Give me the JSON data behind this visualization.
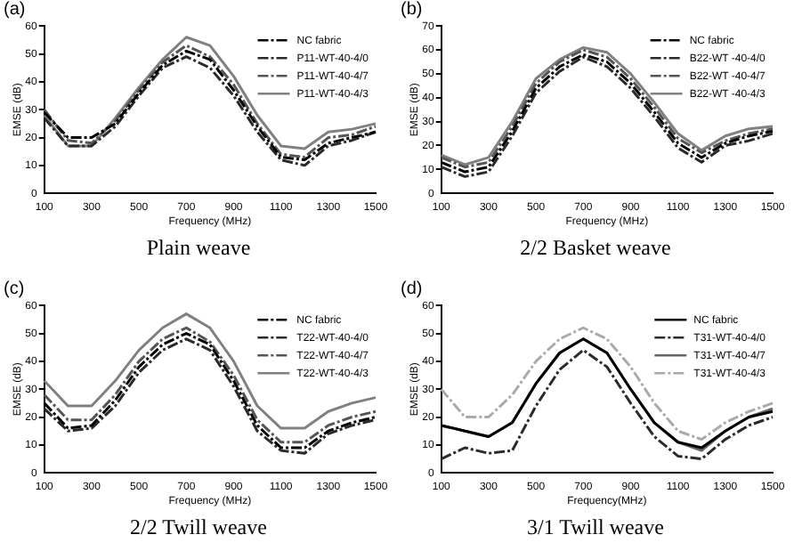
{
  "chart_data": [
    {
      "type": "line",
      "title": "(a)",
      "annotations": [
        "Plain weave"
      ],
      "xlabel": "Frequency (MHz)",
      "ylabel": "EMSE (dB)",
      "x": [
        100,
        200,
        300,
        400,
        500,
        600,
        700,
        800,
        900,
        1000,
        1100,
        1200,
        1300,
        1400,
        1500
      ],
      "xlim": [
        100,
        1500
      ],
      "xticks": [
        100,
        300,
        500,
        700,
        900,
        1100,
        1300,
        1500
      ],
      "ylim": [
        0,
        60
      ],
      "yticks": [
        0,
        10,
        20,
        30,
        40,
        50,
        60
      ],
      "grid": false,
      "legend": "top right",
      "marker": "none",
      "series": [
        {
          "name": "NC fabric",
          "color": "#000000",
          "line_style": "dashed",
          "values": [
            29,
            20,
            20,
            25,
            36,
            46,
            51,
            48,
            37,
            24,
            13,
            12,
            18,
            20,
            22
          ]
        },
        {
          "name": "P11-WT-40-4/0",
          "color": "#2a2a2a",
          "line_style": "dashed",
          "values": [
            27,
            17,
            17,
            24,
            35,
            45,
            49,
            45,
            35,
            22,
            12,
            10,
            17,
            19,
            22
          ]
        },
        {
          "name": "P11-WT-40-4/7",
          "color": "#555555",
          "line_style": "dashed",
          "values": [
            30,
            19,
            18,
            26,
            37,
            47,
            53,
            49,
            39,
            25,
            14,
            13,
            20,
            21,
            24
          ]
        },
        {
          "name": "P11-WT-40-4/3",
          "color": "#808080",
          "line_style": "solid",
          "values": [
            28,
            17,
            17,
            27,
            38,
            48,
            56,
            53,
            42,
            28,
            17,
            16,
            22,
            23,
            25
          ]
        }
      ]
    },
    {
      "type": "line",
      "title": "(b)",
      "annotations": [
        "2/2 Basket weave"
      ],
      "xlabel": "Frequency (MHz)",
      "ylabel": "EMSE (dB)",
      "x": [
        100,
        200,
        300,
        400,
        500,
        600,
        700,
        800,
        900,
        1000,
        1100,
        1200,
        1300,
        1400,
        1500
      ],
      "xlim": [
        100,
        1500
      ],
      "xticks": [
        100,
        300,
        500,
        700,
        900,
        1100,
        1300,
        1500
      ],
      "ylim": [
        0,
        70
      ],
      "yticks": [
        0,
        10,
        20,
        30,
        40,
        50,
        60,
        70
      ],
      "grid": false,
      "legend": "top right",
      "marker": "none",
      "series": [
        {
          "name": "NC fabric",
          "color": "#000000",
          "line_style": "dashed",
          "values": [
            13,
            9,
            11,
            26,
            44,
            53,
            58,
            55,
            46,
            34,
            21,
            15,
            21,
            24,
            26
          ]
        },
        {
          "name": "B22-WT -40-4/0",
          "color": "#2a2a2a",
          "line_style": "dashed",
          "values": [
            11,
            7,
            9,
            24,
            42,
            51,
            57,
            53,
            44,
            32,
            19,
            13,
            20,
            22,
            25
          ]
        },
        {
          "name": "B22-WT -40-4/7",
          "color": "#555555",
          "line_style": "dashed",
          "values": [
            15,
            11,
            13,
            28,
            46,
            55,
            60,
            57,
            48,
            36,
            23,
            17,
            22,
            25,
            27
          ]
        },
        {
          "name": "B22-WT -40-4/3",
          "color": "#808080",
          "line_style": "solid",
          "values": [
            16,
            12,
            15,
            30,
            48,
            56,
            61,
            59,
            50,
            38,
            25,
            18,
            24,
            27,
            28
          ]
        }
      ]
    },
    {
      "type": "line",
      "title": "(c)",
      "annotations": [
        "2/2 Twill weave"
      ],
      "xlabel": "Frequency (MHz)",
      "ylabel": "EMSE (dB)",
      "x": [
        100,
        200,
        300,
        400,
        500,
        600,
        700,
        800,
        900,
        1000,
        1100,
        1200,
        1300,
        1400,
        1500
      ],
      "xlim": [
        100,
        1500
      ],
      "xticks": [
        100,
        300,
        500,
        700,
        900,
        1100,
        1300,
        1500
      ],
      "ylim": [
        0,
        60
      ],
      "yticks": [
        0,
        10,
        20,
        30,
        40,
        50,
        60
      ],
      "grid": false,
      "legend": "top right",
      "marker": "none",
      "series": [
        {
          "name": "NC fabric",
          "color": "#000000",
          "line_style": "dashed",
          "values": [
            25,
            16,
            17,
            26,
            38,
            46,
            50,
            46,
            33,
            17,
            9,
            9,
            15,
            18,
            20
          ]
        },
        {
          "name": "T22-WT-40-4/0",
          "color": "#2a2a2a",
          "line_style": "dashed",
          "values": [
            23,
            15,
            16,
            24,
            36,
            44,
            48,
            44,
            31,
            15,
            8,
            7,
            14,
            17,
            19
          ]
        },
        {
          "name": "T22-WT-40-4/7",
          "color": "#555555",
          "line_style": "dashed",
          "values": [
            28,
            19,
            19,
            28,
            40,
            48,
            52,
            47,
            35,
            19,
            11,
            11,
            17,
            20,
            22
          ]
        },
        {
          "name": "T22-WT-40-4/3",
          "color": "#808080",
          "line_style": "solid",
          "values": [
            33,
            24,
            24,
            33,
            44,
            52,
            57,
            52,
            40,
            24,
            16,
            16,
            22,
            25,
            27
          ]
        }
      ]
    },
    {
      "type": "line",
      "title": "(d)",
      "annotations": [
        "3/1 Twill weave"
      ],
      "xlabel": "Frequency(MHz)",
      "ylabel": "EMSE (dB)",
      "x": [
        100,
        200,
        300,
        400,
        500,
        600,
        700,
        800,
        900,
        1000,
        1100,
        1200,
        1300,
        1400,
        1500
      ],
      "xlim": [
        100,
        1500
      ],
      "xticks": [
        100,
        300,
        500,
        700,
        900,
        1100,
        1300,
        1500
      ],
      "ylim": [
        0,
        60
      ],
      "yticks": [
        0,
        10,
        20,
        30,
        40,
        50,
        60
      ],
      "grid": false,
      "legend": "top right",
      "marker": "none",
      "series": [
        {
          "name": "NC fabric",
          "color": "#000000",
          "line_style": "solid",
          "values": [
            17,
            15,
            13,
            18,
            32,
            43,
            48,
            43,
            30,
            18,
            11,
            9,
            15,
            20,
            22
          ]
        },
        {
          "name": "T31-WT-40-4/0",
          "color": "#2a2a2a",
          "line_style": "dashed",
          "values": [
            5,
            9,
            7,
            8,
            24,
            37,
            44,
            38,
            25,
            13,
            6,
            5,
            12,
            17,
            20
          ]
        },
        {
          "name": "T31-WT-40-4/7",
          "color": "#666666",
          "line_style": "solid",
          "values": [
            17,
            15,
            13,
            18,
            32,
            43,
            48,
            43,
            30,
            18,
            11,
            8,
            15,
            20,
            23
          ]
        },
        {
          "name": "T31-WT-40-4/3",
          "color": "#aaaaaa",
          "line_style": "dashed",
          "values": [
            30,
            20,
            20,
            28,
            40,
            48,
            52,
            48,
            38,
            25,
            15,
            12,
            18,
            22,
            25
          ]
        }
      ]
    }
  ]
}
